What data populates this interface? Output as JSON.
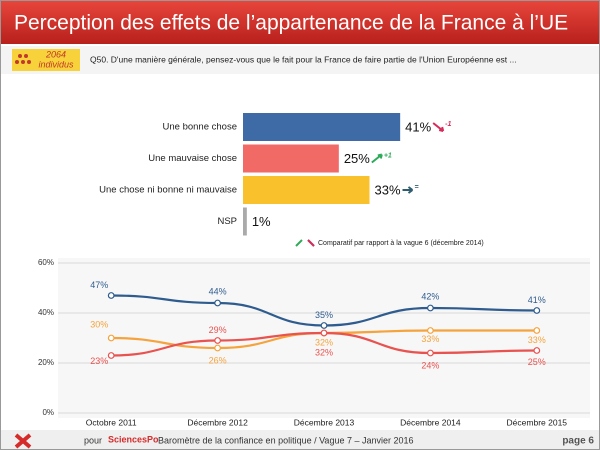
{
  "header": {
    "title": "Perception des effets de l’appartenance de la France à l’UE",
    "sample_number": "2064",
    "sample_unit": "individus",
    "question": "Q50. D'une manière générale, pensez-vous que le fait pour la France de faire partie de l'Union Européenne est ..."
  },
  "chart_data": [
    {
      "type": "hbar",
      "categories": [
        "Une bonne chose",
        "Une mauvaise chose",
        "Une chose ni bonne ni mauvaise",
        "NSP"
      ],
      "values": [
        41,
        25,
        33,
        1
      ],
      "value_labels": [
        "41%",
        "25%",
        "33%",
        "1%"
      ],
      "changes": [
        "-1",
        "+1",
        "=",
        null
      ],
      "colors": [
        "#3e6ba6",
        "#f26a66",
        "#f9c12b",
        "#aaaaaa"
      ],
      "xlim": [
        0,
        60
      ],
      "note": "Comparatif par rapport à la vague 6  (décembre 2014)"
    },
    {
      "type": "line",
      "categories": [
        "Octobre 2011",
        "Décembre 2012",
        "Décembre 2013",
        "Décembre 2014",
        "Décembre 2015"
      ],
      "series": [
        {
          "color": "#2f5c8f",
          "values": [
            47,
            44,
            35,
            42,
            41
          ],
          "value_labels": [
            "47%",
            "44%",
            "35%",
            "42%",
            "41%"
          ]
        },
        {
          "color": "#f5a33c",
          "values": [
            30,
            26,
            32,
            33,
            33
          ],
          "value_labels": [
            "30%",
            "26%",
            "32%",
            "33%",
            "33%"
          ]
        },
        {
          "color": "#e8524f",
          "values": [
            23,
            29,
            32,
            24,
            25
          ],
          "value_labels": [
            "23%",
            "29%",
            "32%",
            "24%",
            "25%"
          ]
        }
      ],
      "ylim": [
        0,
        60
      ],
      "yticks": [
        {
          "value": 0,
          "label": "0%"
        },
        {
          "value": 20,
          "label": "20%"
        },
        {
          "value": 40,
          "label": "40%"
        },
        {
          "value": 60,
          "label": "60%"
        }
      ],
      "grid": true
    }
  ],
  "footer": {
    "pour": "pour",
    "brand": "SciencesPo",
    "text": "Baromètre de la confiance en politique / Vague 7 – Janvier 2016",
    "page": "page 6"
  }
}
